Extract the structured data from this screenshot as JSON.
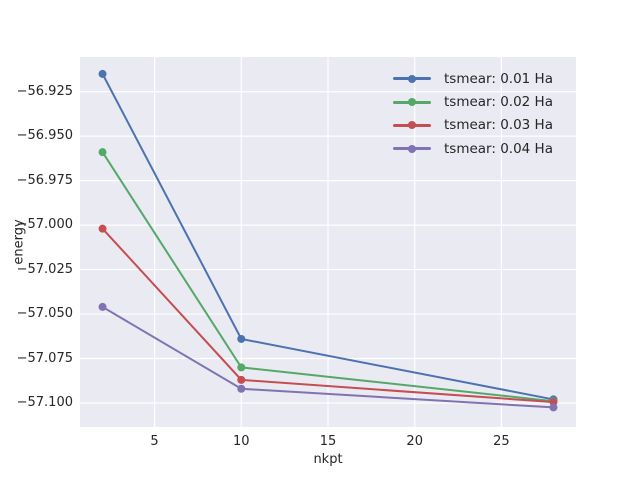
{
  "figure": {
    "background": "#FFFFFF"
  },
  "chart_data": {
    "type": "line",
    "title": "",
    "xlabel": "nkpt",
    "ylabel": "energy",
    "x": [
      2,
      10,
      28
    ],
    "series": [
      {
        "name": "tsmear: 0.01 Ha",
        "color": "#4C72B0",
        "values": [
          -56.915,
          -57.064,
          -57.098
        ]
      },
      {
        "name": "tsmear: 0.02 Ha",
        "color": "#55A868",
        "values": [
          -56.959,
          -57.08,
          -57.099
        ]
      },
      {
        "name": "tsmear: 0.03 Ha",
        "color": "#C44E52",
        "values": [
          -57.002,
          -57.087,
          -57.0995
        ]
      },
      {
        "name": "tsmear: 0.04 Ha",
        "color": "#8172B2",
        "values": [
          -57.046,
          -57.092,
          -57.1025
        ]
      }
    ],
    "xlim": [
      0.7,
      29.3
    ],
    "ylim": [
      -57.1135,
      -56.9055
    ],
    "xticks": {
      "values": [
        5,
        10,
        15,
        20,
        25
      ],
      "labels": [
        "5",
        "10",
        "15",
        "20",
        "25"
      ]
    },
    "yticks": {
      "values": [
        -56.925,
        -56.95,
        -56.975,
        -57.0,
        -57.025,
        -57.05,
        -57.075,
        -57.1
      ],
      "labels": [
        "−56.925",
        "−56.950",
        "−56.975",
        "−57.000",
        "−57.025",
        "−57.050",
        "−57.075",
        "−57.100"
      ]
    },
    "grid": true,
    "legend_position": "upper right",
    "axes_background": "#EAEAF2",
    "grid_color": "#FFFFFF",
    "text_color": "#262626",
    "line_width": 2,
    "marker_size": 8
  }
}
